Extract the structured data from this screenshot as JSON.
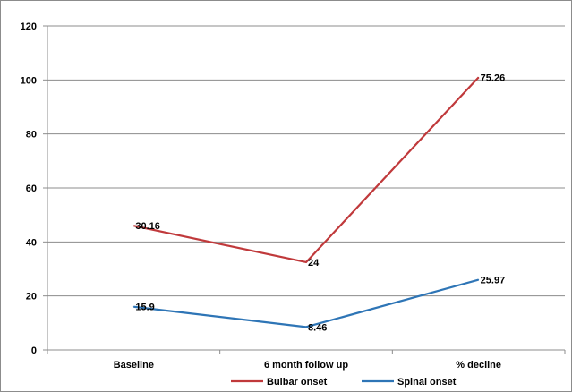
{
  "chart_data": {
    "type": "line",
    "title": "",
    "xlabel": "",
    "ylabel": "",
    "categories": [
      "Baseline",
      "6 month follow up",
      "% decline"
    ],
    "ylim": [
      0,
      120
    ],
    "yticks": [
      0,
      20,
      40,
      60,
      80,
      100,
      120
    ],
    "grid": "horizontal",
    "legend_position": "bottom",
    "series": [
      {
        "name": "Bulbar onset",
        "color": "#c0393b",
        "values": [
          46,
          32.5,
          101
        ],
        "labels": [
          "30.16",
          "24",
          "75.26"
        ]
      },
      {
        "name": "Spinal onset",
        "color": "#2e75b6",
        "values": [
          16,
          8.5,
          26
        ],
        "labels": [
          "15.9",
          "8.46",
          "25.97"
        ]
      }
    ]
  }
}
